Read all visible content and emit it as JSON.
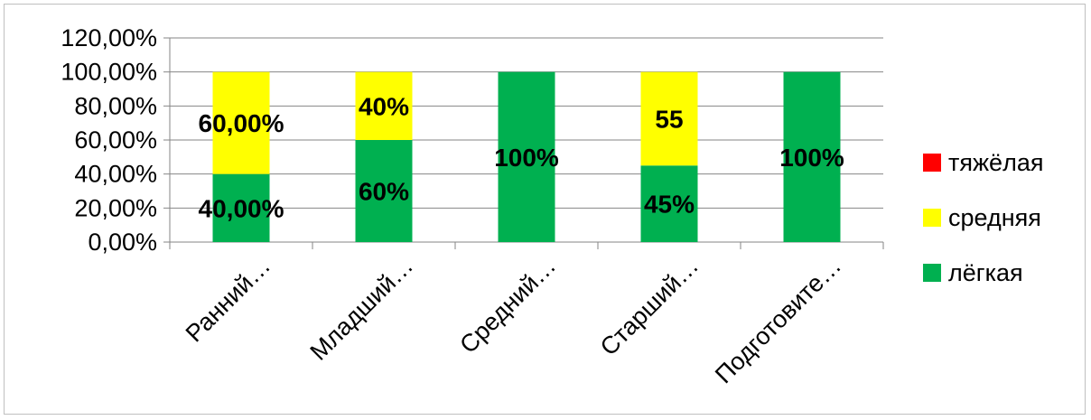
{
  "chart_data": {
    "type": "bar",
    "stacked": true,
    "title": "",
    "xlabel": "",
    "ylabel": "",
    "ylim": [
      0,
      120
    ],
    "y_tick_labels": [
      "0,00%",
      "20,00%",
      "40,00%",
      "60,00%",
      "80,00%",
      "100,00%",
      "120,00%"
    ],
    "grid": true,
    "legend_position": "right",
    "categories": [
      "Ранний…",
      "Младший…",
      "Средний…",
      "Старший…",
      "Подготовите…"
    ],
    "series": [
      {
        "name": "лёгкая",
        "color": "#00b050",
        "values": [
          40,
          60,
          100,
          45,
          100
        ],
        "labels": [
          "40,00%",
          "60%",
          "100%",
          "45%",
          "100%"
        ]
      },
      {
        "name": "средняя",
        "color": "#ffff00",
        "values": [
          60,
          40,
          0,
          55,
          0
        ],
        "labels": [
          "60,00%",
          "40%",
          "",
          "55",
          ""
        ]
      },
      {
        "name": "тяжёлая",
        "color": "#ff0000",
        "values": [
          0,
          0,
          0,
          0,
          0
        ],
        "labels": [
          "",
          "",
          "",
          "",
          ""
        ]
      }
    ],
    "legend_order": [
      "тяжёлая",
      "средняя",
      "лёгкая"
    ]
  }
}
